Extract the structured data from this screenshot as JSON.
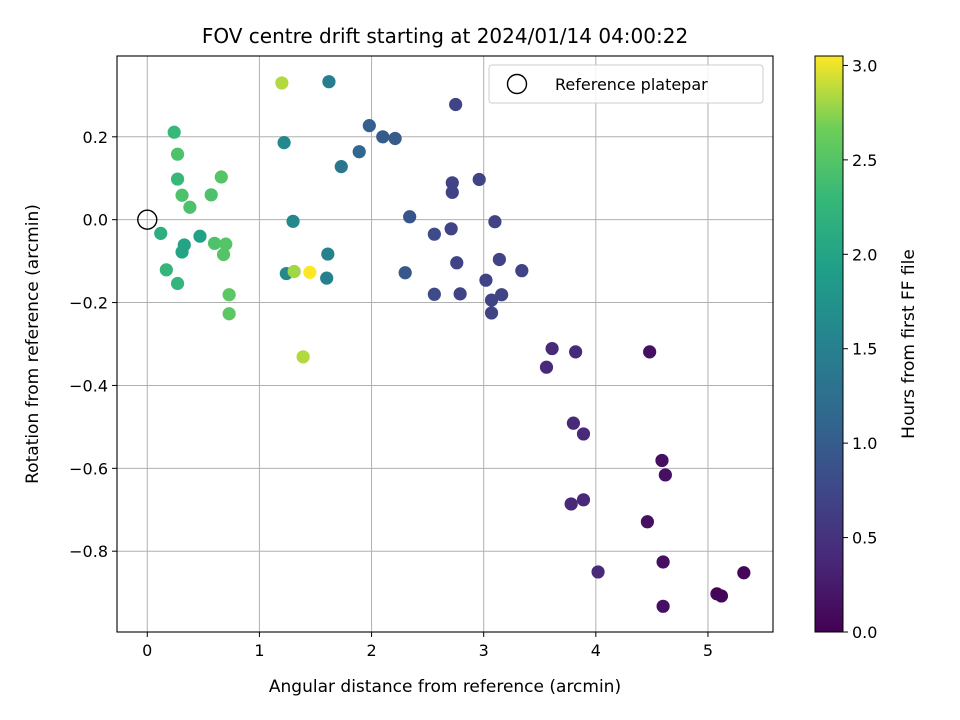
{
  "chart_data": {
    "type": "scatter",
    "title": "FOV centre drift starting at 2024/01/14 04:00:22",
    "xlabel": "Angular distance from reference (arcmin)",
    "ylabel": "Rotation from reference (arcmin)",
    "xlim": [
      -0.27,
      5.58
    ],
    "ylim": [
      -0.995,
      0.395
    ],
    "xticks": [
      0,
      1,
      2,
      3,
      4,
      5
    ],
    "yticks": [
      0.2,
      0.0,
      -0.2,
      -0.4,
      -0.6,
      -0.8
    ],
    "ytick_labels": [
      "0.2",
      "0.0",
      "−0.2",
      "−0.4",
      "−0.6",
      "−0.8"
    ],
    "xtick_labels": [
      "0",
      "1",
      "2",
      "3",
      "4",
      "5"
    ],
    "grid": true,
    "legend": {
      "placement": "top-right",
      "entries": [
        "Reference platepar"
      ]
    },
    "colorbar": {
      "label": "Hours from first FF file",
      "colormap": "viridis",
      "range": [
        0.0,
        3.05
      ],
      "ticks": [
        0.0,
        0.5,
        1.0,
        1.5,
        2.0,
        2.5,
        3.0
      ],
      "tick_labels": [
        "0.0",
        "0.5",
        "1.0",
        "1.5",
        "2.0",
        "2.5",
        "3.0"
      ]
    },
    "reference": {
      "x": 0.0,
      "y": 0.0,
      "name": "Reference platepar"
    },
    "points": [
      {
        "x": 5.32,
        "y": -0.852,
        "c": 0.05
      },
      {
        "x": 5.12,
        "y": -0.908,
        "c": 0.05
      },
      {
        "x": 5.08,
        "y": -0.903,
        "c": 0.05
      },
      {
        "x": 4.6,
        "y": -0.933,
        "c": 0.15
      },
      {
        "x": 4.6,
        "y": -0.826,
        "c": 0.15
      },
      {
        "x": 4.46,
        "y": -0.729,
        "c": 0.15
      },
      {
        "x": 4.62,
        "y": -0.616,
        "c": 0.15
      },
      {
        "x": 4.59,
        "y": -0.581,
        "c": 0.15
      },
      {
        "x": 4.48,
        "y": -0.319,
        "c": 0.15
      },
      {
        "x": 4.02,
        "y": -0.85,
        "c": 0.4
      },
      {
        "x": 3.89,
        "y": -0.676,
        "c": 0.4
      },
      {
        "x": 3.78,
        "y": -0.686,
        "c": 0.4
      },
      {
        "x": 3.89,
        "y": -0.517,
        "c": 0.4
      },
      {
        "x": 3.8,
        "y": -0.491,
        "c": 0.4
      },
      {
        "x": 3.82,
        "y": -0.319,
        "c": 0.4
      },
      {
        "x": 3.61,
        "y": -0.311,
        "c": 0.4
      },
      {
        "x": 3.56,
        "y": -0.356,
        "c": 0.4
      },
      {
        "x": 3.34,
        "y": -0.123,
        "c": 0.7
      },
      {
        "x": 3.16,
        "y": -0.181,
        "c": 0.7
      },
      {
        "x": 3.07,
        "y": -0.194,
        "c": 0.7
      },
      {
        "x": 3.07,
        "y": -0.225,
        "c": 0.7
      },
      {
        "x": 3.02,
        "y": -0.146,
        "c": 0.7
      },
      {
        "x": 3.14,
        "y": -0.096,
        "c": 0.7
      },
      {
        "x": 3.1,
        "y": -0.005,
        "c": 0.7
      },
      {
        "x": 2.96,
        "y": 0.097,
        "c": 0.7
      },
      {
        "x": 2.72,
        "y": 0.089,
        "c": 0.7
      },
      {
        "x": 2.72,
        "y": 0.066,
        "c": 0.7
      },
      {
        "x": 2.71,
        "y": -0.022,
        "c": 0.7
      },
      {
        "x": 2.76,
        "y": -0.104,
        "c": 0.7
      },
      {
        "x": 2.79,
        "y": -0.179,
        "c": 0.7
      },
      {
        "x": 2.75,
        "y": 0.278,
        "c": 0.7
      },
      {
        "x": 2.56,
        "y": -0.18,
        "c": 0.8
      },
      {
        "x": 2.56,
        "y": -0.035,
        "c": 0.8
      },
      {
        "x": 2.34,
        "y": 0.007,
        "c": 0.9
      },
      {
        "x": 2.3,
        "y": -0.128,
        "c": 0.95
      },
      {
        "x": 2.21,
        "y": 0.196,
        "c": 1.0
      },
      {
        "x": 2.1,
        "y": 0.2,
        "c": 1.0
      },
      {
        "x": 1.98,
        "y": 0.227,
        "c": 1.05
      },
      {
        "x": 1.89,
        "y": 0.164,
        "c": 1.15
      },
      {
        "x": 1.73,
        "y": 0.128,
        "c": 1.35
      },
      {
        "x": 1.62,
        "y": 0.333,
        "c": 1.45
      },
      {
        "x": 1.61,
        "y": -0.083,
        "c": 1.5
      },
      {
        "x": 1.6,
        "y": -0.141,
        "c": 1.5
      },
      {
        "x": 1.22,
        "y": 0.186,
        "c": 1.6
      },
      {
        "x": 1.3,
        "y": -0.004,
        "c": 1.6
      },
      {
        "x": 1.24,
        "y": -0.13,
        "c": 1.6
      },
      {
        "x": 1.31,
        "y": -0.125,
        "c": 2.8
      },
      {
        "x": 1.45,
        "y": -0.127,
        "c": 3.05
      },
      {
        "x": 1.39,
        "y": -0.331,
        "c": 2.85
      },
      {
        "x": 1.2,
        "y": 0.33,
        "c": 2.85
      },
      {
        "x": 0.47,
        "y": -0.04,
        "c": 1.95
      },
      {
        "x": 0.33,
        "y": -0.061,
        "c": 2.0
      },
      {
        "x": 0.31,
        "y": -0.078,
        "c": 2.0
      },
      {
        "x": 0.12,
        "y": -0.033,
        "c": 2.15
      },
      {
        "x": 0.17,
        "y": -0.121,
        "c": 2.25
      },
      {
        "x": 0.27,
        "y": -0.154,
        "c": 2.25
      },
      {
        "x": 0.27,
        "y": 0.098,
        "c": 2.3
      },
      {
        "x": 0.31,
        "y": 0.059,
        "c": 2.45
      },
      {
        "x": 0.38,
        "y": 0.03,
        "c": 2.45
      },
      {
        "x": 0.27,
        "y": 0.158,
        "c": 2.45
      },
      {
        "x": 0.24,
        "y": 0.211,
        "c": 2.3
      },
      {
        "x": 0.57,
        "y": 0.06,
        "c": 2.45
      },
      {
        "x": 0.66,
        "y": 0.103,
        "c": 2.5
      },
      {
        "x": 0.6,
        "y": -0.057,
        "c": 2.45
      },
      {
        "x": 0.7,
        "y": -0.059,
        "c": 2.5
      },
      {
        "x": 0.68,
        "y": -0.084,
        "c": 2.5
      },
      {
        "x": 0.73,
        "y": -0.181,
        "c": 2.55
      },
      {
        "x": 0.73,
        "y": -0.227,
        "c": 2.55
      }
    ]
  }
}
